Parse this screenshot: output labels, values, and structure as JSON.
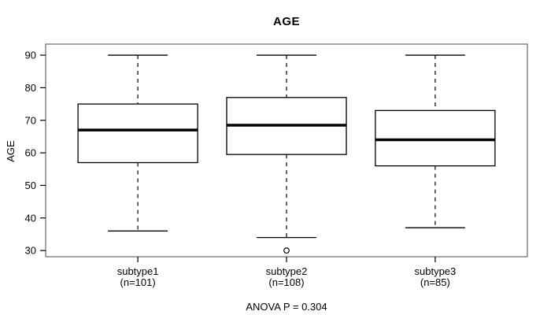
{
  "chart_data": {
    "type": "boxplot",
    "title": "AGE",
    "ylabel": "AGE",
    "xlabel": "",
    "annotation": "ANOVA P = 0.304",
    "grid": false,
    "legend": "none",
    "yticks": [
      30,
      40,
      50,
      60,
      70,
      80,
      90
    ],
    "ylim": [
      28.1,
      93.4
    ],
    "groups": [
      {
        "label": "subtype1",
        "n_label": "(n=101)",
        "n": 101,
        "whisker_low": 36,
        "q1": 57,
        "median": 67,
        "q3": 75,
        "whisker_high": 90,
        "outliers": []
      },
      {
        "label": "subtype2",
        "n_label": "(n=108)",
        "n": 108,
        "whisker_low": 34,
        "q1": 59.5,
        "median": 68.5,
        "q3": 77,
        "whisker_high": 90,
        "outliers": [
          30
        ]
      },
      {
        "label": "subtype3",
        "n_label": "(n=85)",
        "n": 85,
        "whisker_low": 37,
        "q1": 56,
        "median": 64,
        "q3": 73,
        "whisker_high": 90,
        "outliers": []
      }
    ]
  },
  "colors": {
    "background": "#ffffff",
    "plot_border": "#7d7d7d",
    "box_stroke": "#000000",
    "median_stroke": "#000000",
    "text": "#000000"
  }
}
